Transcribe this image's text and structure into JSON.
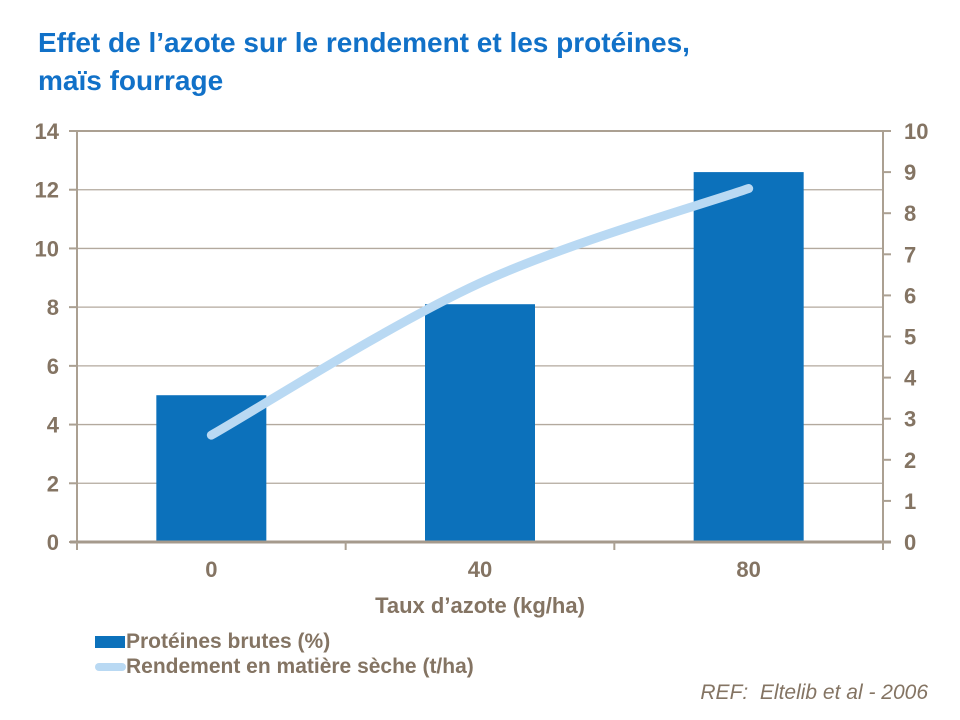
{
  "title": {
    "line1": "Effet de l’azote sur le rendement et les protéines,",
    "line2": "maïs fourrage"
  },
  "reference": "REF:  Eltelib et al - 2006",
  "colors": {
    "title_text": "#1171c8",
    "bar_fill": "#0c71bb",
    "line_stroke": "#b9d9f3",
    "axis_text": "#847463",
    "gridline": "#b3a99e",
    "axis_frame": "#aba092",
    "axis_bottom": "#a59a8c"
  },
  "chart_data": {
    "type": "bar",
    "subtype": "bar-line-combo",
    "title": "Effet de l’azote sur le rendement et les protéines, maïs fourrage",
    "xlabel": "Taux d’azote (kg/ha)",
    "categories": [
      "0",
      "40",
      "80"
    ],
    "series": [
      {
        "name": "Protéines brutes (%)",
        "type": "bar",
        "axis": "left",
        "values": [
          5.0,
          8.1,
          12.6
        ],
        "color": "#0c71bb"
      },
      {
        "name": "Rendement en matière sèche (t/ha)",
        "type": "line",
        "axis": "right",
        "values": [
          2.6,
          6.3,
          8.6
        ],
        "color": "#b9d9f3"
      }
    ],
    "left_axis": {
      "min": 0,
      "max": 14,
      "step": 2
    },
    "right_axis": {
      "min": 0,
      "max": 10,
      "step": 1
    },
    "grid": true,
    "legend_position": "bottom-left"
  }
}
